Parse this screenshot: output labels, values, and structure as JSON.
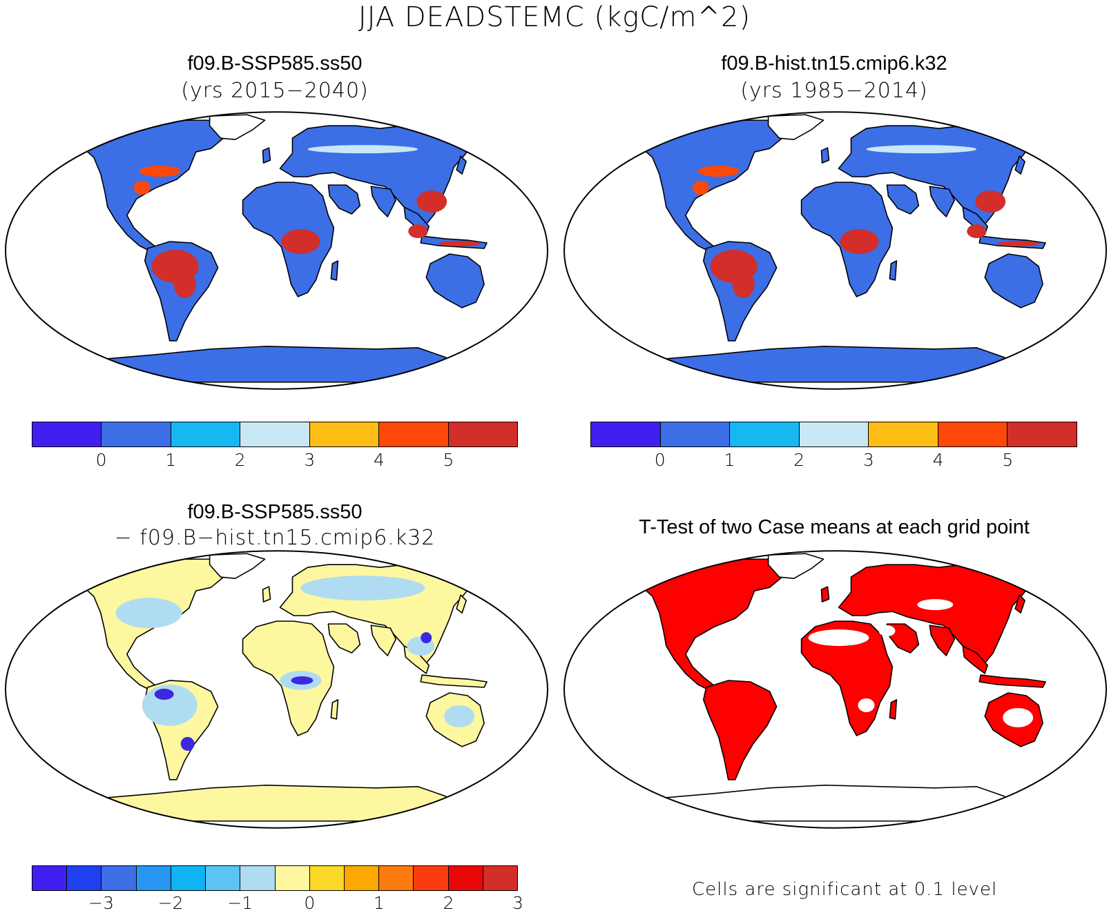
{
  "title": "JJA DEADSTEMC (kgC/m^2)",
  "panels": {
    "top_left": {
      "case": "f09.B-SSP585.ss50",
      "period": "(yrs 2015−2040)"
    },
    "top_right": {
      "case": "f09.B-hist.tn15.cmip6.k32",
      "period": "(yrs 1985−2014)"
    },
    "bottom_left": {
      "case": "f09.B-SSP585.ss50",
      "case2": "− f09.B−hist.tn15.cmip6.k32"
    },
    "bottom_right": {
      "title": "T-Test of two Case means at each grid point",
      "note": "Cells are significant at 0.1 level"
    }
  },
  "colorbar_abs": {
    "colors": [
      "#4020f0",
      "#3c6ee6",
      "#16b8f2",
      "#c8e8f7",
      "#fcbe14",
      "#fe4808",
      "#d22e2a"
    ],
    "ticks": [
      "0",
      "1",
      "2",
      "3",
      "4",
      "5"
    ]
  },
  "colorbar_diff": {
    "colors": [
      "#4020f0",
      "#2040f0",
      "#3c6ee6",
      "#2896f0",
      "#10b4f4",
      "#5cc4f4",
      "#b0dcf2",
      "#fdf7a0",
      "#fcd828",
      "#fca800",
      "#fc7a10",
      "#fc3c10",
      "#e80808",
      "#d22e2a"
    ],
    "ticks": [
      "−3",
      "−2",
      "−1",
      "0",
      "1",
      "2",
      "3"
    ]
  },
  "map_colors": {
    "top_land": "#3c6ee6",
    "top_hot": "#d22e2a",
    "top_warm": "#fe4808",
    "diff_land": "#fdf7a0",
    "diff_neg": "#b0dcf2",
    "diff_strong": "#3c28e0",
    "ttest_land": "#ff0000"
  }
}
